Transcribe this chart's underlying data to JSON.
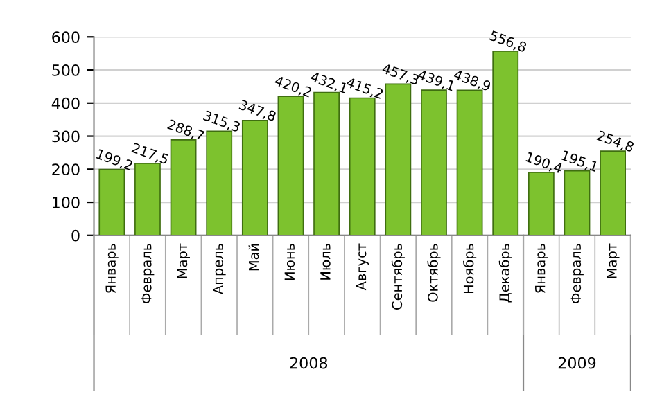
{
  "chart_data": {
    "type": "bar",
    "categories": [
      "Январь",
      "Февраль",
      "Март",
      "Апрель",
      "Май",
      "Июнь",
      "Июль",
      "Август",
      "Сентябрь",
      "Октябрь",
      "Ноябрь",
      "Декабрь",
      "Январь",
      "Февраль",
      "Март"
    ],
    "values": [
      199.2,
      217.5,
      288.7,
      315.3,
      347.8,
      420.2,
      432.1,
      415.2,
      457.3,
      439.1,
      438.9,
      556.8,
      190.4,
      195.1,
      254.8
    ],
    "value_labels": [
      "199,2",
      "217,5",
      "288,7",
      "315,3",
      "347,8",
      "420,2",
      "432,1",
      "415,2",
      "457,3",
      "439,1",
      "438,9",
      "556,8",
      "190,4",
      "195,1",
      "254,8"
    ],
    "color": "#7dc22e",
    "ylim": [
      0,
      600
    ],
    "yticks": [
      0,
      100,
      200,
      300,
      400,
      500,
      600
    ],
    "grid": "y",
    "annotations": [
      "2008",
      "2009"
    ]
  }
}
